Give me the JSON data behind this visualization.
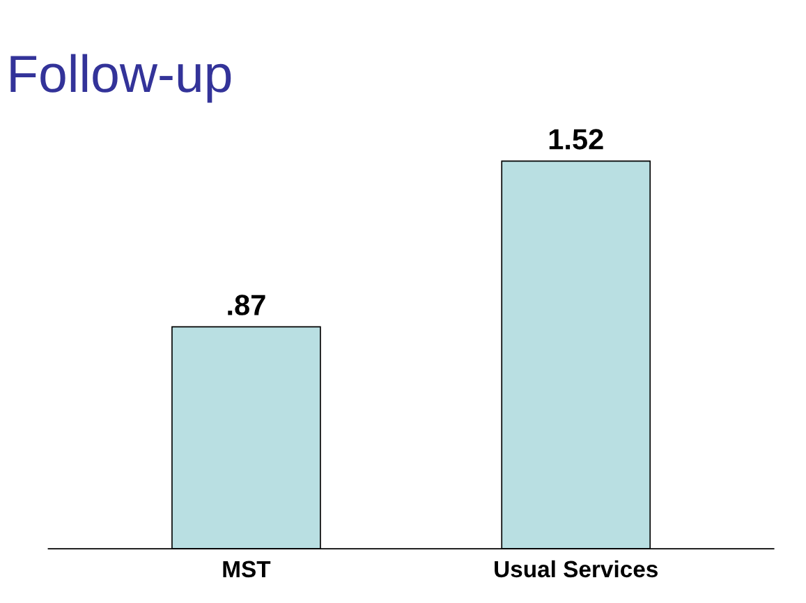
{
  "chart_data": {
    "type": "bar",
    "title": "Follow-up",
    "categories": [
      "MST",
      "Usual Services"
    ],
    "values": [
      0.87,
      1.52
    ],
    "value_labels": [
      ".87",
      "1.52"
    ],
    "color": "#b9dfe2",
    "grid": false,
    "legend": false,
    "tick_labels": "x"
  }
}
